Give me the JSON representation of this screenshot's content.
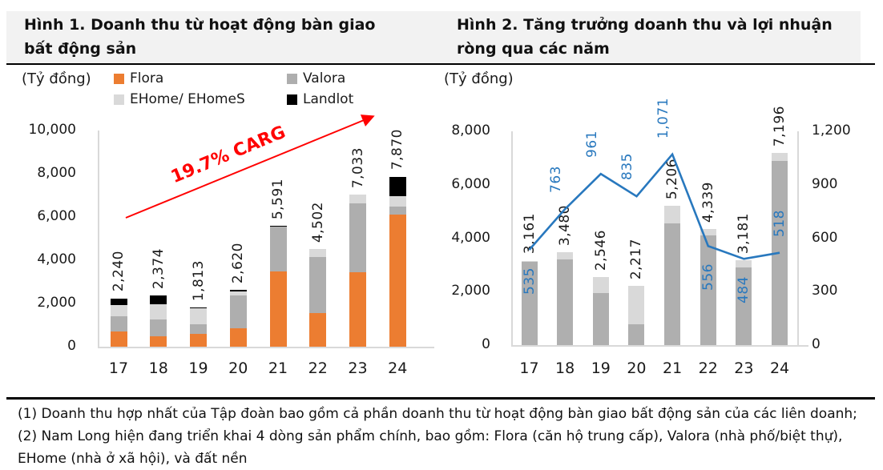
{
  "figure1": {
    "title": "Hình 1. Doanh thu từ hoạt động bàn giao bất động sản",
    "unit_label": "(Tỷ đồng)",
    "annotation": "19.7% CARG",
    "annotation_color": "#ff0000"
  },
  "figure2": {
    "title": "Hình 2. Tăng trưởng doanh thu và lợi nhuận ròng qua các năm",
    "unit_label": "(Tỷ đồng)"
  },
  "footer": {
    "lines": [
      "(1) Doanh thu hợp nhất của Tập đoàn bao gồm cả phần doanh thu từ hoạt động bàn giao bất động sản của các liên doanh;",
      "(2) Nam Long hiện đang triển khai 4 dòng sản phẩm chính, bao gồm: Flora (căn hộ trung cấp), Valora (nhà phố/biệt thự),",
      "EHome (nhà ở xã hội), và đất nền"
    ]
  },
  "chart_data": [
    {
      "type": "bar",
      "stacked": true,
      "title": "Hình 1. Doanh thu từ hoạt động bàn giao bất động sản",
      "unit": "Tỷ đồng",
      "categories": [
        "17",
        "18",
        "19",
        "20",
        "21",
        "22",
        "23",
        "24"
      ],
      "series": [
        {
          "name": "Flora",
          "color": "#ec7d31",
          "values": [
            715,
            479,
            590,
            840,
            3480,
            1540,
            3460,
            6100
          ]
        },
        {
          "name": "Valora",
          "color": "#aeaeae",
          "values": [
            700,
            775,
            450,
            1520,
            2060,
            2590,
            3170,
            390
          ]
        },
        {
          "name": "EHome/ EHomeS",
          "color": "#d9d9d9",
          "values": [
            525,
            720,
            720,
            200,
            0,
            372,
            403,
            490
          ]
        },
        {
          "name": "Landlot",
          "color": "#000000",
          "values": [
            300,
            400,
            53,
            60,
            51,
            0,
            0,
            890
          ]
        }
      ],
      "totals": [
        2240,
        2374,
        1813,
        2620,
        5591,
        4502,
        7033,
        7870
      ],
      "total_labels": [
        "2,240",
        "2,374",
        "1,813",
        "2,620",
        "5,591",
        "4,502",
        "7,033",
        "7,870"
      ],
      "ylim": [
        0,
        10000
      ],
      "ytick_values": [
        0,
        2000,
        4000,
        6000,
        8000,
        10000
      ],
      "ytick_labels": [
        "0",
        "2,000",
        "4,000",
        "6,000",
        "8,000",
        "10,000"
      ],
      "grid": false,
      "legend_position": "top",
      "annotation": {
        "text": "19.7% CARG",
        "color": "#ff0000"
      }
    },
    {
      "type": "bar+line",
      "title": "Hình 2. Tăng trưởng doanh thu và lợi nhuận ròng qua các năm",
      "unit": "Tỷ đồng",
      "categories": [
        "17",
        "18",
        "19",
        "20",
        "21",
        "22",
        "23",
        "24"
      ],
      "bar_series": [
        {
          "name": "segment-dark-gray",
          "color": "#afafaf",
          "values": [
            3110,
            3220,
            1956,
            780,
            4550,
            4100,
            2900,
            6900
          ]
        },
        {
          "name": "segment-light-gray",
          "color": "#d9d9d9",
          "values": [
            51,
            260,
            590,
            1437,
            656,
            239,
            281,
            296
          ]
        }
      ],
      "totals": [
        3161,
        3480,
        2546,
        2217,
        5206,
        4339,
        3181,
        7196
      ],
      "total_labels": [
        "3,161",
        "3,480",
        "2,546",
        "2,217",
        "5,206",
        "4,339",
        "3,181",
        "7,196"
      ],
      "line_series": {
        "name": "net-profit-line",
        "color": "#2878be",
        "axis": "right",
        "values": [
          535,
          763,
          961,
          835,
          1071,
          556,
          484,
          518
        ],
        "labels": [
          "535",
          "763",
          "961",
          "835",
          "1,071",
          "556",
          "484",
          "518"
        ],
        "label_placement": [
          "below",
          "above-left",
          "above-left",
          "above-left",
          "above-left",
          "below",
          "below",
          "above"
        ]
      },
      "ylim_left": [
        0,
        8000
      ],
      "ytick_left_values": [
        0,
        2000,
        4000,
        6000,
        8000
      ],
      "ytick_left_labels": [
        "0",
        "2,000",
        "4,000",
        "6,000",
        "8,000"
      ],
      "ylim_right": [
        0,
        1200
      ],
      "ytick_right_values": [
        0,
        300,
        600,
        900,
        1200
      ],
      "ytick_right_labels": [
        "0",
        "300",
        "600",
        "900",
        "1,200"
      ],
      "grid": false
    }
  ]
}
